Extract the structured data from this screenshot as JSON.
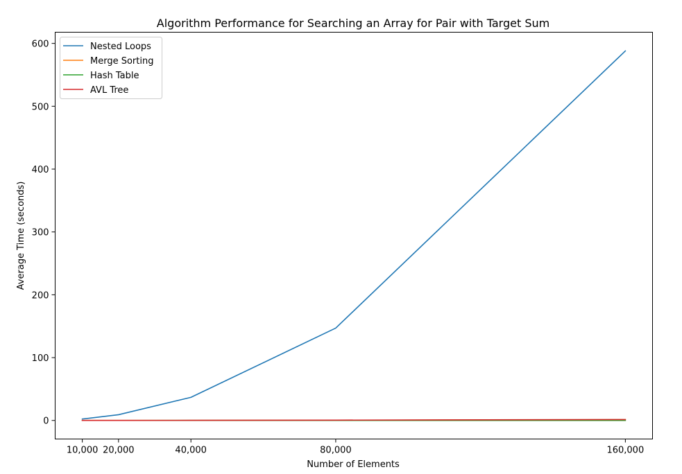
{
  "chart_data": {
    "type": "line",
    "title": "Algorithm Performance for Searching an Array for Pair with Target Sum",
    "xlabel": "Number of Elements",
    "ylabel": "Average Time (seconds)",
    "x": [
      10000,
      20000,
      40000,
      80000,
      160000
    ],
    "x_tick_labels": [
      "10,000",
      "20,000",
      "40,000",
      "80,000",
      "160,000"
    ],
    "y_ticks": [
      0,
      100,
      200,
      300,
      400,
      500,
      600
    ],
    "y_tick_labels": [
      "0",
      "100",
      "200",
      "300",
      "400",
      "500",
      "600"
    ],
    "xlim": [
      2500,
      167500
    ],
    "ylim": [
      -29.5,
      617.8
    ],
    "grid": false,
    "legend_position": "top-left",
    "series": [
      {
        "name": "Nested Loops",
        "color": "#1f77b4",
        "values": [
          2.3,
          9.2,
          36.8,
          147.0,
          588.0
        ]
      },
      {
        "name": "Merge Sorting",
        "color": "#ff7f0e",
        "values": [
          0.02,
          0.04,
          0.09,
          0.3,
          1.2
        ]
      },
      {
        "name": "Hash Table",
        "color": "#2ca02c",
        "values": [
          0.005,
          0.01,
          0.02,
          0.04,
          0.08
        ]
      },
      {
        "name": "AVL Tree",
        "color": "#d62728",
        "values": [
          0.03,
          0.07,
          0.16,
          0.5,
          1.5
        ]
      }
    ]
  }
}
